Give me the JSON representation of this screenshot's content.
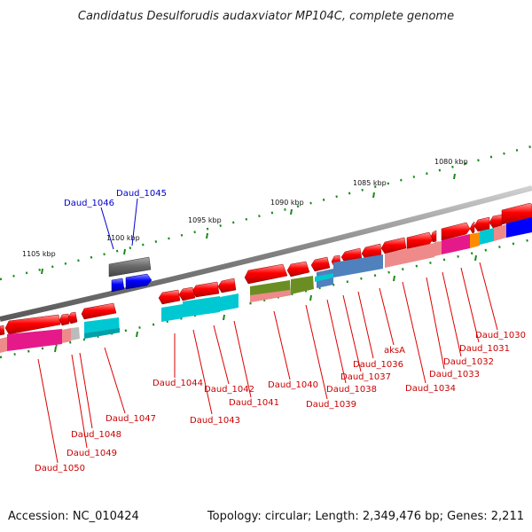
{
  "map": {
    "title": "Candidatus Desulforudis audaxviator MP104C, complete genome",
    "accession": "Accession: NC_010424",
    "summary": "Topology: circular; Length: 2,349,476 bp; Genes: 2,211"
  },
  "ruler": [
    "1080 kbp",
    "1085 kbp",
    "1090 kbp",
    "1095 kbp",
    "1100 kbp",
    "1105 kbp"
  ],
  "genes": [
    {
      "label": "Daud_1030",
      "color": "#cc0000"
    },
    {
      "label": "Daud_1031",
      "color": "#cc0000"
    },
    {
      "label": "Daud_1032",
      "color": "#cc0000"
    },
    {
      "label": "Daud_1033",
      "color": "#cc0000"
    },
    {
      "label": "Daud_1034",
      "color": "#cc0000"
    },
    {
      "label": "aksA",
      "color": "#cc0000"
    },
    {
      "label": "Daud_1036",
      "color": "#cc0000"
    },
    {
      "label": "Daud_1037",
      "color": "#cc0000"
    },
    {
      "label": "Daud_1038",
      "color": "#cc0000"
    },
    {
      "label": "Daud_1039",
      "color": "#cc0000"
    },
    {
      "label": "Daud_1040",
      "color": "#cc0000"
    },
    {
      "label": "Daud_1041",
      "color": "#cc0000"
    },
    {
      "label": "Daud_1042",
      "color": "#cc0000"
    },
    {
      "label": "Daud_1043",
      "color": "#cc0000"
    },
    {
      "label": "Daud_1044",
      "color": "#cc0000"
    },
    {
      "label": "Daud_1045",
      "color": "#0000cc"
    },
    {
      "label": "Daud_1046",
      "color": "#0000cc"
    },
    {
      "label": "Daud_1047",
      "color": "#cc0000"
    },
    {
      "label": "Daud_1048",
      "color": "#cc0000"
    },
    {
      "label": "Daud_1049",
      "color": "#cc0000"
    },
    {
      "label": "Daud_1050",
      "color": "#cc0000"
    }
  ],
  "feature_colors": {
    "gene": "#ff0000",
    "cds_magenta": "#e6198a",
    "cds_cyan": "#00c8d2",
    "cds_olive": "#6b8e23",
    "cds_steelblue": "#4f81bd",
    "cds_salmon": "#ee8a8a",
    "cds_orange": "#ff8c00",
    "cds_grey": "#777777",
    "cds_blue": "#0000ff"
  }
}
